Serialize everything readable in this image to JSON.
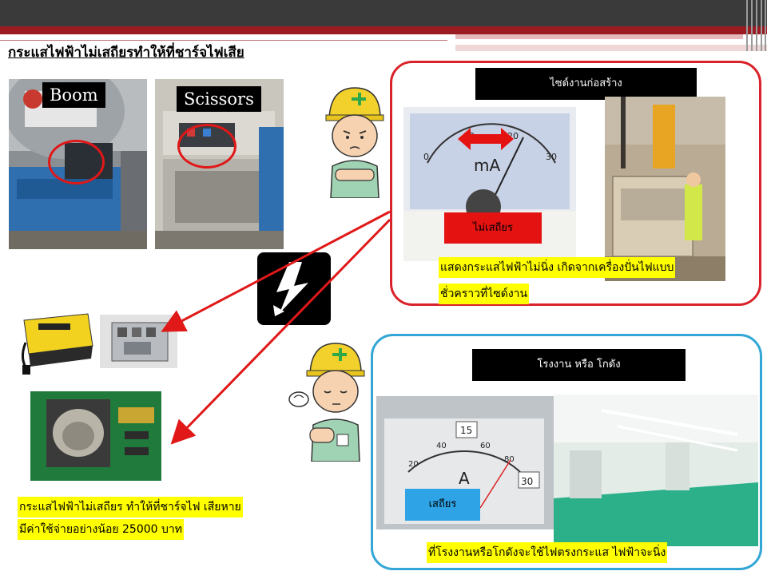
{
  "slide": {
    "title": "กระแสไฟฟ้าไม่เสถียรทำให้ที่ชาร์จไฟเสีย"
  },
  "photos": {
    "boom_tag": "Boom",
    "scissors_tag": "Scissors"
  },
  "construction": {
    "label": "ไซด์งานก่อสร้าง",
    "meter_status": "ไม่เสถียร",
    "caption_line1": "แสดงกระแสไฟฟ้าไม่นิ่ง เกิดจากเครื่องปั่นไฟแบบ",
    "caption_line2": "ชั่วคราวที่ไซด์งาน"
  },
  "factory": {
    "label": "โรงงาน หรือ โกดัง",
    "meter_status": "เสถียร",
    "caption": "ที่โรงงานหรือโกดังจะใช้ไฟตรงกระแส ไฟฟ้าจะนิ่ง"
  },
  "damage": {
    "caption_line1": "กระแสไฟฟ้าไม่เสถียร ทำให้ที่ชาร์จไฟ เสียหาย",
    "caption_line2": "มีค่าใช้จ่ายอย่างน้อย 25000 บาท"
  },
  "icons": [
    "lightning-warning-icon",
    "worried-worker-icon",
    "relieved-worker-icon"
  ],
  "colors": {
    "header_dark": "#3a3a3a",
    "header_red": "#9a1b22",
    "construction_border": "#d9222a",
    "factory_border": "#32a6d6",
    "highlight_yellow": "#ffff00",
    "unstable_red": "#e51212",
    "stable_blue": "#2ea3e6"
  }
}
